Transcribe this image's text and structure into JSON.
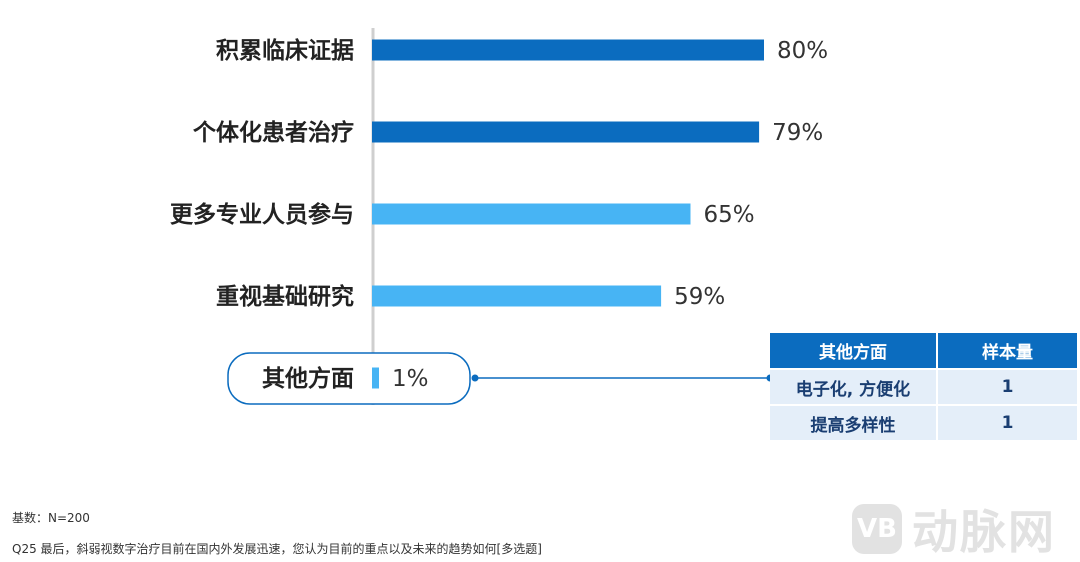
{
  "chart_data": {
    "type": "bar",
    "orientation": "horizontal",
    "categories": [
      "积累临床证据",
      "个体化患者治疗",
      "更多专业人员参与",
      "重视基础研究",
      "其他方面"
    ],
    "values": [
      80,
      79,
      65,
      59,
      1
    ],
    "value_labels": [
      "80%",
      "79%",
      "65%",
      "59%",
      "1%"
    ],
    "colors": [
      "#0b6cbf",
      "#0b6cbf",
      "#47b4f4",
      "#47b4f4",
      "#47b4f4"
    ],
    "xlim": [
      0,
      100
    ],
    "grid": false,
    "highlighted_category": "其他方面"
  },
  "side_table": {
    "headers": [
      "其他方面",
      "样本量"
    ],
    "rows": [
      [
        "电子化, 方便化",
        "1"
      ],
      [
        "提高多样性",
        "1"
      ]
    ]
  },
  "footnotes": {
    "base": "基数：N=200",
    "question": "Q25 最后，斜弱视数字治疗目前在国内外发展迅速，您认为目前的重点以及未来的趋势如何[多选题]"
  },
  "watermark": {
    "logo_text": "VB",
    "text": "动脉网"
  }
}
